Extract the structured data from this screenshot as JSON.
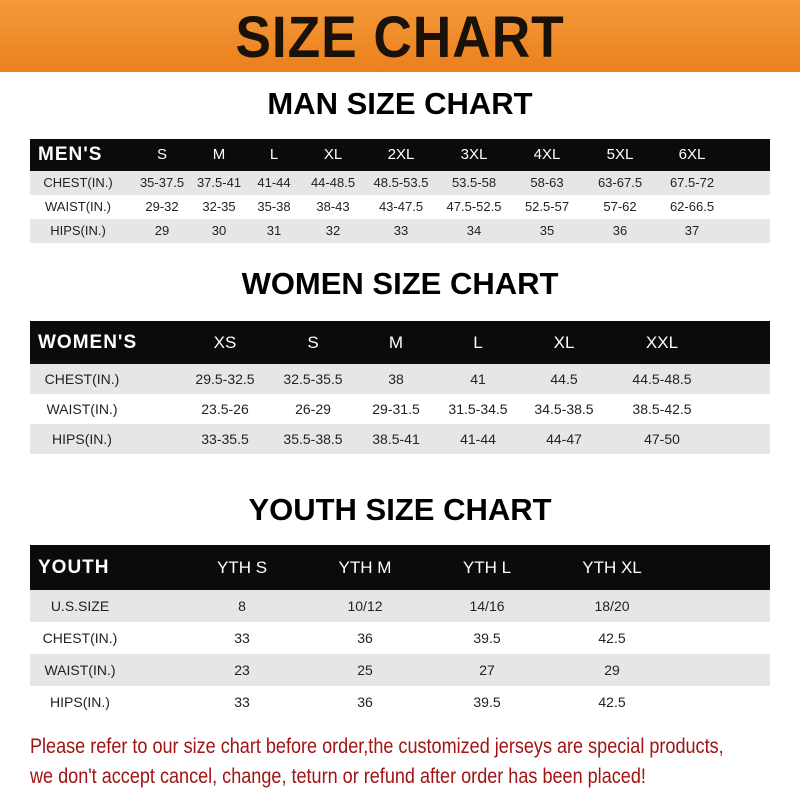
{
  "banner": {
    "title": "SIZE CHART",
    "color": "#ee8424"
  },
  "men": {
    "title": "MAN SIZE CHART",
    "header": [
      "MEN'S",
      "S",
      "M",
      "L",
      "XL",
      "2XL",
      "3XL",
      "4XL",
      "5XL",
      "6XL"
    ],
    "rows": [
      [
        "CHEST(IN.)",
        "35-37.5",
        "37.5-41",
        "41-44",
        "44-48.5",
        "48.5-53.5",
        "53.5-58",
        "58-63",
        "63-67.5",
        "67.5-72"
      ],
      [
        "WAIST(IN.)",
        "29-32",
        "32-35",
        "35-38",
        "38-43",
        "43-47.5",
        "47.5-52.5",
        "52.5-57",
        "57-62",
        "62-66.5"
      ],
      [
        "HIPS(IN.)",
        "29",
        "30",
        "31",
        "32",
        "33",
        "34",
        "35",
        "36",
        "37"
      ]
    ]
  },
  "women": {
    "title": "WOMEN SIZE CHART",
    "header": [
      "WOMEN'S",
      "XS",
      "S",
      "M",
      "L",
      "XL",
      "XXL"
    ],
    "rows": [
      [
        "CHEST(IN.)",
        "29.5-32.5",
        "32.5-35.5",
        "38",
        "41",
        "44.5",
        "44.5-48.5"
      ],
      [
        "WAIST(IN.)",
        "23.5-26",
        "26-29",
        "29-31.5",
        "31.5-34.5",
        "34.5-38.5",
        "38.5-42.5"
      ],
      [
        "HIPS(IN.)",
        "33-35.5",
        "35.5-38.5",
        "38.5-41",
        "41-44",
        "44-47",
        "47-50"
      ]
    ]
  },
  "youth": {
    "title": "YOUTH SIZE CHART",
    "header": [
      "YOUTH",
      "YTH S",
      "YTH M",
      "YTH L",
      "YTH XL"
    ],
    "rows": [
      [
        "U.S.SIZE",
        "8",
        "10/12",
        "14/16",
        "18/20"
      ],
      [
        "CHEST(IN.)",
        "33",
        "36",
        "39.5",
        "42.5"
      ],
      [
        "WAIST(IN.)",
        "23",
        "25",
        "27",
        "29"
      ],
      [
        "HIPS(IN.)",
        "33",
        "36",
        "39.5",
        "42.5"
      ]
    ]
  },
  "notice": {
    "line1": "Please refer to our size chart before order,the customized jerseys are special products,",
    "line2": "we don't accept cancel, change, teturn or refund after order has been placed!",
    "color": "#a01414"
  }
}
